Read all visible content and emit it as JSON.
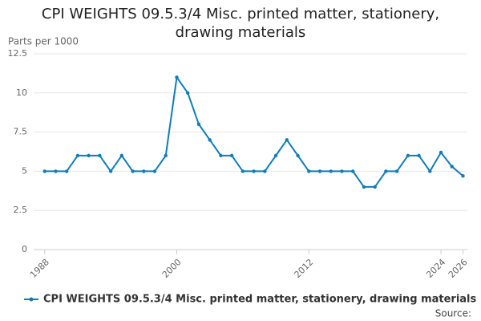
{
  "chart_data": {
    "type": "line",
    "title": "CPI WEIGHTS 09.5.3/4 Misc. printed matter, stationery, drawing materials",
    "y_label": "Parts per 1000",
    "source": "Source:",
    "x": [
      1988,
      1989,
      1990,
      1991,
      1992,
      1993,
      1994,
      1995,
      1996,
      1997,
      1998,
      1999,
      2000,
      2001,
      2002,
      2003,
      2004,
      2005,
      2006,
      2007,
      2008,
      2009,
      2010,
      2011,
      2012,
      2013,
      2014,
      2015,
      2016,
      2017,
      2018,
      2019,
      2020,
      2021,
      2022,
      2023,
      2024,
      2025,
      2026
    ],
    "series": [
      {
        "name": "CPI WEIGHTS 09.5.3/4 Misc. printed matter, stationery, drawing materials",
        "color": "#0f7cba",
        "values": [
          5,
          5,
          5,
          6,
          6,
          6,
          5,
          6,
          5,
          5,
          5,
          6,
          11,
          10,
          8,
          7,
          6,
          6,
          5,
          5,
          5,
          6,
          7,
          6,
          5,
          5,
          5,
          5,
          5,
          4,
          4,
          5,
          5,
          6,
          6,
          5,
          6.2,
          5.3,
          4.7
        ]
      }
    ],
    "xlim": [
      1987,
      2026.4
    ],
    "xticks": [
      1988,
      2000,
      2012,
      2024,
      2026
    ],
    "ylim": [
      0,
      12.5
    ],
    "yticks": [
      0,
      2.5,
      5,
      7.5,
      10,
      12.5
    ],
    "grid": true
  }
}
